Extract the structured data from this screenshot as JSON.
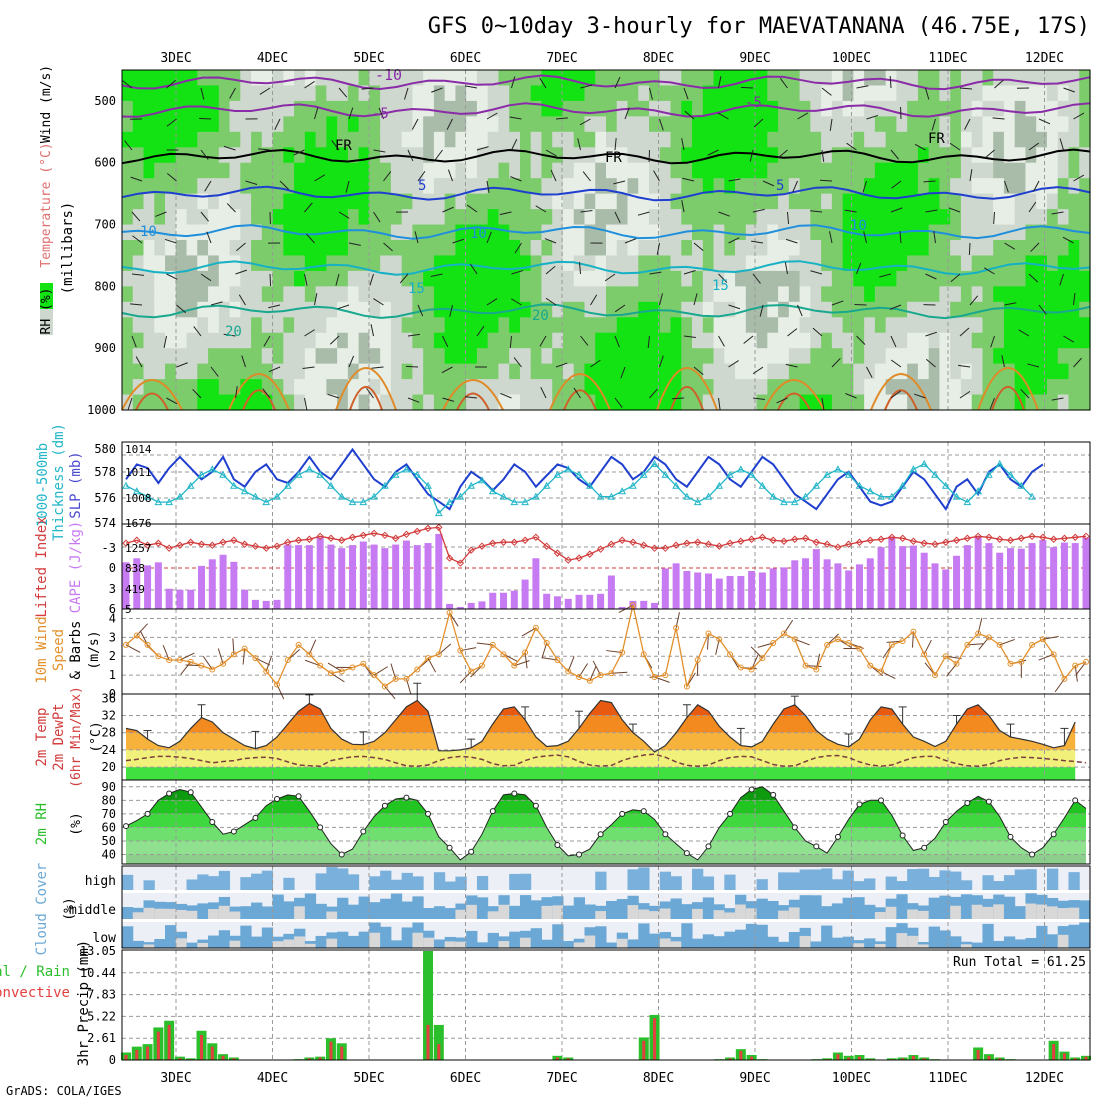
{
  "title": "GFS 0~10day 3-hourly for MAEVATANANA (46.75E, 17S)",
  "footer": "GrADS: COLA/IGES",
  "date_labels": [
    "3DEC",
    "4DEC",
    "5DEC",
    "6DEC",
    "7DEC",
    "8DEC",
    "9DEC",
    "10DEC",
    "11DEC",
    "12DEC"
  ],
  "colors": {
    "rh_light": "#cfd8cf",
    "rh_mid": "#7ccc6c",
    "rh_dark": "#13e313",
    "temp_dark": "#1f3fcf",
    "thick": "#22b6c8",
    "cape": "#c77bf2",
    "lifted": "#d23c3c",
    "wind": "#e3902c",
    "cloud": "#6ba8d6",
    "precip_total": "#2bbf2b",
    "precip_conv": "#e34040"
  },
  "chart_data": [
    {
      "type": "heatmap",
      "name": "upper-air",
      "side_labels": {
        "rh": "RH (%)",
        "temp": "Temperature (°C)",
        "wind": "Wind (m/s)",
        "unit": "(millibars)"
      },
      "yticks": [
        "500",
        "600",
        "700",
        "800",
        "900",
        "1000"
      ],
      "contour_labels": [
        "-10",
        "-5",
        "FR",
        "FR",
        "FR",
        "5",
        "5",
        "10",
        "10",
        "10",
        "15",
        "15",
        "20",
        "20",
        "-5"
      ]
    },
    {
      "type": "line",
      "name": "thickness-slp",
      "side_labels": {
        "thick": "1000-500mb",
        "thick2": "Thickness (dm)",
        "slp": "SLP (mb)"
      },
      "yticks_left": [
        "580",
        "578",
        "576",
        "574"
      ],
      "yticks_right": [
        "1014",
        "1011",
        "1008",
        "1676"
      ],
      "series": [
        {
          "name": "SLP",
          "values": [
            1011,
            1013,
            1012.5,
            1010.5,
            1012.5,
            1014,
            1012.5,
            1011,
            1012,
            1014,
            1011,
            1010,
            1012,
            1013,
            1011,
            1010.5,
            1012,
            1014,
            1012,
            1011,
            1013,
            1015,
            1013,
            1011,
            1010,
            1012,
            1013,
            1011,
            1009,
            1008,
            1007,
            1010,
            1012,
            1011,
            1009.5,
            1011,
            1013,
            1012,
            1010,
            1011.5,
            1013,
            1012.5,
            1011,
            1010,
            1012,
            1014,
            1013,
            1011,
            1012,
            1014,
            1013,
            1011,
            1010,
            1012,
            1014,
            1013,
            1011,
            1010,
            1012,
            1014,
            1013,
            1011,
            1009,
            1008,
            1007,
            1009,
            1011,
            1012,
            1010,
            1008,
            1007.5,
            1008,
            1010,
            1012,
            1011,
            1009,
            1007,
            1010,
            1011,
            1009,
            1012,
            1013,
            1011,
            1010,
            1012,
            1013
          ]
        },
        {
          "name": "Thickness",
          "values": [
            577,
            576.5,
            576,
            575.5,
            575.5,
            576,
            577,
            578,
            578.5,
            578,
            577,
            576.5,
            576,
            575.5,
            576,
            577,
            578,
            578.5,
            578,
            577,
            576,
            575.5,
            575.5,
            576,
            577,
            578,
            578.5,
            578,
            577,
            574.5,
            575.5,
            576,
            577,
            577.5,
            576.5,
            576,
            575.5,
            575.5,
            576,
            577,
            578,
            578.5,
            578,
            577,
            576,
            576,
            576.5,
            577,
            578,
            579,
            578,
            577,
            576,
            575.5,
            576,
            577,
            578,
            578.5,
            578,
            577,
            576,
            575.5,
            575.5,
            576,
            577,
            578,
            578.5,
            578,
            577,
            576.5,
            576,
            576,
            577,
            578.5,
            579,
            578,
            577,
            576,
            575.5,
            576.5,
            578,
            579,
            578,
            577,
            576
          ]
        }
      ]
    },
    {
      "type": "bar",
      "name": "cape-lifted",
      "side_labels": {
        "li": "Lifted Index",
        "cape": "CAPE (J/kg)"
      },
      "yticks_left": [
        "-3",
        "0",
        "3",
        "6"
      ],
      "yticks_right": [
        "1257",
        "838",
        "419",
        "5"
      ],
      "series": [
        {
          "name": "CAPE",
          "values": [
            920,
            1000,
            860,
            920,
            400,
            380,
            380,
            850,
            980,
            1070,
            930,
            380,
            180,
            160,
            180,
            1270,
            1260,
            1260,
            1410,
            1270,
            1200,
            1260,
            1330,
            1270,
            1200,
            1270,
            1350,
            1260,
            1300,
            1480,
            100,
            40,
            120,
            150,
            320,
            320,
            360,
            580,
            1000,
            300,
            250,
            200,
            280,
            280,
            300,
            660,
            40,
            160,
            160,
            120,
            800,
            900,
            750,
            720,
            700,
            600,
            650,
            650,
            750,
            720,
            800,
            820,
            960,
            1000,
            1180,
            980,
            900,
            760,
            880,
            1000,
            1220,
            1430,
            1240,
            1250,
            1110,
            900,
            780,
            1050,
            1260,
            1430,
            1300,
            1110,
            1200,
            1190,
            1300,
            1360,
            1220,
            1310,
            1300,
            1410
          ]
        },
        {
          "name": "Lifted Index",
          "values": [
            -2.5,
            -2.8,
            -2.3,
            -2.5,
            -2.0,
            -2.3,
            -2.6,
            -2.4,
            -2.3,
            -2.6,
            -2.8,
            -2.4,
            -2.2,
            -2.0,
            -2.2,
            -2.6,
            -2.8,
            -2.9,
            -3.2,
            -3.0,
            -2.8,
            -3.1,
            -3.3,
            -3.5,
            -3.3,
            -3.0,
            -3.4,
            -3.7,
            -4.0,
            -4.1,
            -1.0,
            -0.5,
            -1.8,
            -2.2,
            -2.5,
            -2.6,
            -2.6,
            -2.8,
            -3.1,
            -2.2,
            -1.5,
            -0.8,
            -1.0,
            -1.4,
            -1.9,
            -2.4,
            -2.8,
            -2.6,
            -2.3,
            -2.0,
            -2.0,
            -2.3,
            -2.5,
            -2.6,
            -2.4,
            -2.2,
            -2.5,
            -2.7,
            -2.9,
            -3.1,
            -2.8,
            -2.7,
            -2.9,
            -3.0,
            -2.6,
            -2.4,
            -2.1,
            -2.4,
            -2.6,
            -2.8,
            -2.9,
            -3.1,
            -3.0,
            -2.7,
            -2.5,
            -2.4,
            -2.6,
            -2.8,
            -3.0,
            -3.2,
            -3.1,
            -2.9,
            -2.8,
            -3.0,
            -3.2,
            -3.1,
            -2.9,
            -3.0,
            -3.1,
            -3.2
          ]
        }
      ]
    },
    {
      "type": "line",
      "name": "wind-10m",
      "side_labels": {
        "a": "10m Wind",
        "b": "Speed",
        "c": "& Barbs",
        "d": "(m/s)"
      },
      "yticks": [
        "4",
        "3",
        "2",
        "1",
        "0"
      ],
      "series": [
        {
          "name": "Speed",
          "values": [
            2.6,
            3.1,
            2.6,
            2.0,
            1.8,
            1.8,
            1.7,
            1.5,
            1.3,
            1.6,
            2.1,
            2.4,
            1.9,
            1.2,
            0.5,
            1.8,
            2.6,
            2.1,
            1.5,
            1.1,
            1.2,
            1.4,
            1.6,
            1.0,
            0.4,
            0.8,
            0.8,
            1.3,
            1.9,
            2.1,
            4.3,
            2.3,
            1.2,
            1.5,
            2.6,
            2.1,
            1.5,
            2.2,
            3.5,
            2.7,
            1.8,
            1.2,
            0.9,
            0.7,
            1.0,
            1.1,
            2.2,
            4.7,
            2.1,
            0.9,
            1.0,
            3.5,
            0.4,
            1.8,
            3.2,
            2.9,
            2.1,
            1.4,
            1.3,
            1.9,
            2.7,
            3.2,
            2.9,
            1.5,
            1.3,
            2.6,
            2.9,
            2.7,
            2.4,
            1.5,
            1.2,
            2.6,
            2.8,
            3.3,
            2.1,
            1.0,
            2.0,
            1.6,
            2.6,
            3.2,
            3.0,
            2.6,
            1.6,
            1.7,
            2.6,
            2.9,
            2.1,
            0.8,
            1.5,
            1.7
          ]
        }
      ]
    },
    {
      "type": "area",
      "name": "temperature-2m",
      "side_labels": {
        "a": "2m Temp",
        "b": "2m DewPt",
        "c": "(6hr Min/Max)",
        "d": "(°C)"
      },
      "yticks": [
        "36",
        "32",
        "28",
        "24",
        "20"
      ],
      "series": [
        {
          "name": "Temp",
          "values": [
            29,
            28.5,
            26.5,
            25,
            24.5,
            26,
            29,
            31.5,
            30.5,
            28,
            26.5,
            25,
            24.3,
            25,
            27,
            30,
            33,
            34.8,
            33.5,
            29,
            26.5,
            25.3,
            25.2,
            26,
            28,
            31,
            34,
            35.5,
            33,
            23.8,
            23.8,
            24,
            24.5,
            26,
            30,
            33.5,
            34,
            31,
            27,
            24.8,
            25,
            26,
            29,
            32.5,
            35.5,
            35,
            31,
            28,
            26,
            23.5,
            25,
            28,
            31.5,
            34.5,
            33,
            29.5,
            27,
            25,
            24.7,
            26,
            30,
            33.5,
            34.5,
            32,
            28.5,
            26.5,
            25.3,
            24.7,
            26.5,
            31,
            34,
            33.5,
            30,
            27,
            26,
            24.8,
            26,
            30,
            33.5,
            34.5,
            32,
            28.5,
            27,
            26.5,
            26,
            25.3,
            24.5,
            25,
            30.5
          ]
        },
        {
          "name": "DewPt",
          "values": [
            21.5,
            21.8,
            22.2,
            22.5,
            22.5,
            22.3,
            22.0,
            21.5,
            21.0,
            21.3,
            21.5,
            22.0,
            22.2,
            22.3,
            22.0,
            21.2,
            20.5,
            20.3,
            20.2,
            21.5,
            22.0,
            22.4,
            22.5,
            22.2,
            21.8,
            21.0,
            20.3,
            20.2,
            20.5,
            21.5,
            22.2,
            22.5,
            22.3,
            21.8,
            20.8,
            20.3,
            20.4,
            21.5,
            22.3,
            22.6,
            22.8,
            22.4,
            21.3,
            20.5,
            20.2,
            20.4,
            21.5,
            22.3,
            22.8,
            23.0,
            22.3,
            21.2,
            20.4,
            20.2,
            20.5,
            21.5,
            22.2,
            22.5,
            22.4,
            21.5,
            20.6,
            20.2,
            20.3,
            21.3,
            22.2,
            22.6,
            22.7,
            22.2,
            21.2,
            20.5,
            20.2,
            20.5,
            21.4,
            22.2,
            22.5,
            22.5,
            21.5,
            20.8,
            20.3,
            20.2,
            20.6,
            21.5,
            22.0,
            22.3,
            22.2,
            22.0,
            21.8,
            21.5,
            21.3,
            21.0
          ]
        }
      ]
    },
    {
      "type": "area",
      "name": "rh-2m",
      "side_labels": {
        "a": "2m RH",
        "b": "(%)"
      },
      "yticks": [
        "90",
        "80",
        "70",
        "60",
        "50",
        "40"
      ],
      "series": [
        {
          "name": "RH",
          "values": [
            61,
            65,
            70,
            80,
            85,
            88,
            86,
            75,
            64,
            55,
            57,
            62,
            67,
            76,
            81,
            84,
            83,
            72,
            60,
            48,
            40,
            44,
            57,
            68,
            76,
            81,
            82,
            80,
            70,
            53,
            45,
            36,
            42,
            55,
            72,
            84,
            85,
            84,
            76,
            60,
            47,
            39,
            40,
            44,
            55,
            62,
            70,
            73,
            72,
            66,
            55,
            48,
            41,
            36,
            46,
            60,
            70,
            82,
            88,
            90,
            84,
            72,
            60,
            50,
            46,
            41,
            53,
            66,
            77,
            80,
            80,
            69,
            54,
            43,
            45,
            52,
            64,
            72,
            78,
            83,
            79,
            68,
            53,
            45,
            40,
            45,
            55,
            67,
            80,
            74
          ]
        }
      ]
    },
    {
      "type": "heatmap",
      "name": "cloud-cover",
      "side_labels": {
        "a": "Cloud Cover",
        "b": "(%)"
      },
      "yticks": [
        "high",
        "middle",
        "low"
      ]
    },
    {
      "type": "bar",
      "name": "precip",
      "side_labels": {
        "a": "Total / Rain",
        "b": "Convective",
        "c": "3hr Precip (mm)"
      },
      "yticks": [
        "13.05",
        "10.44",
        "7.83",
        "5.22",
        "2.61",
        "0"
      ],
      "run_total": "Run Total = 61.25",
      "series": [
        {
          "name": "Total",
          "values": [
            0.9,
            1.6,
            1.9,
            3.9,
            4.7,
            0.4,
            0.2,
            3.5,
            2.0,
            0.7,
            0.3,
            0,
            0,
            0,
            0,
            0,
            0.1,
            0.3,
            0.4,
            2.6,
            2.0,
            0,
            0,
            0,
            0,
            0,
            0,
            0,
            13.05,
            4.2,
            0,
            0,
            0,
            0,
            0,
            0,
            0,
            0,
            0,
            0,
            0.5,
            0.3,
            0,
            0,
            0,
            0,
            0,
            0,
            2.7,
            5.4,
            0,
            0,
            0,
            0,
            0,
            0.1,
            0.3,
            1.3,
            0.6,
            0.1,
            0,
            0,
            0,
            0,
            0.1,
            0.2,
            0.9,
            0.5,
            0.6,
            0.2,
            0,
            0.2,
            0.3,
            0.6,
            0.3,
            0.1,
            0,
            0,
            0,
            1.5,
            0.7,
            0.3,
            0.1,
            0,
            0,
            0,
            2.3,
            1.0,
            0.3,
            0.5
          ]
        },
        {
          "name": "Convective",
          "values": [
            0.6,
            1.2,
            1.6,
            3.4,
            4.2,
            0.2,
            0.1,
            3.0,
            1.6,
            0.5,
            0.2,
            0,
            0,
            0,
            0,
            0,
            0.05,
            0.2,
            0.3,
            2.2,
            1.6,
            0,
            0,
            0,
            0,
            0,
            0,
            0,
            4.2,
            1.9,
            0,
            0,
            0,
            0,
            0,
            0,
            0,
            0,
            0,
            0,
            0.3,
            0.2,
            0,
            0,
            0,
            0,
            0,
            0,
            2.3,
            5.0,
            0,
            0,
            0,
            0,
            0,
            0.05,
            0.2,
            1.1,
            0.4,
            0.05,
            0,
            0,
            0,
            0,
            0.05,
            0.1,
            0.7,
            0.3,
            0.4,
            0.1,
            0,
            0.1,
            0.2,
            0.5,
            0.2,
            0.05,
            0,
            0,
            0,
            1.2,
            0.5,
            0.2,
            0.05,
            0,
            0,
            0,
            1.9,
            0.8,
            0.2,
            0.4
          ]
        }
      ]
    }
  ]
}
